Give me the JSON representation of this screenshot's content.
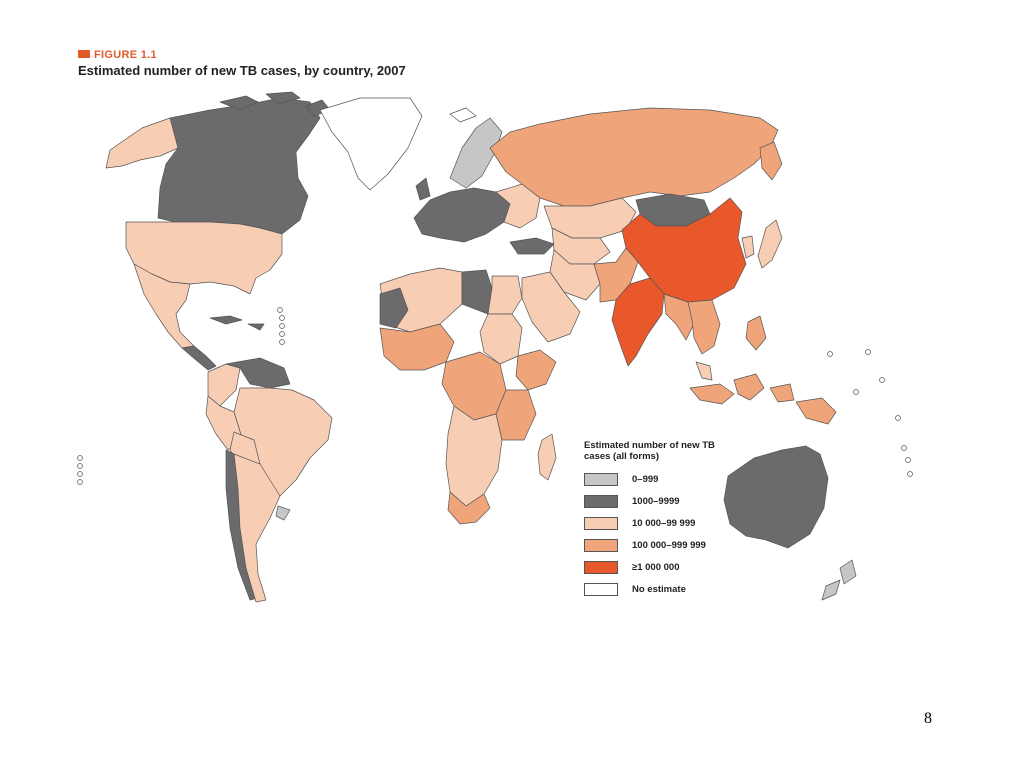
{
  "figure": {
    "label": "FIGURE 1.1",
    "title": "Estimated number of new TB cases, by country, 2007"
  },
  "legend": {
    "title": "Estimated number of new TB cases (all forms)",
    "items": [
      {
        "label": "0–999",
        "color": "#c6c6c6"
      },
      {
        "label": "1000–9999",
        "color": "#6b6b6d"
      },
      {
        "label": "10 000–99 999",
        "color": "#f7cdb4"
      },
      {
        "label": "100 000–999 999",
        "color": "#f0a47a"
      },
      {
        "label": "≥1 000 000",
        "color": "#e9582a"
      },
      {
        "label": "No estimate",
        "color": "#ffffff"
      }
    ]
  },
  "page_number": "8"
}
